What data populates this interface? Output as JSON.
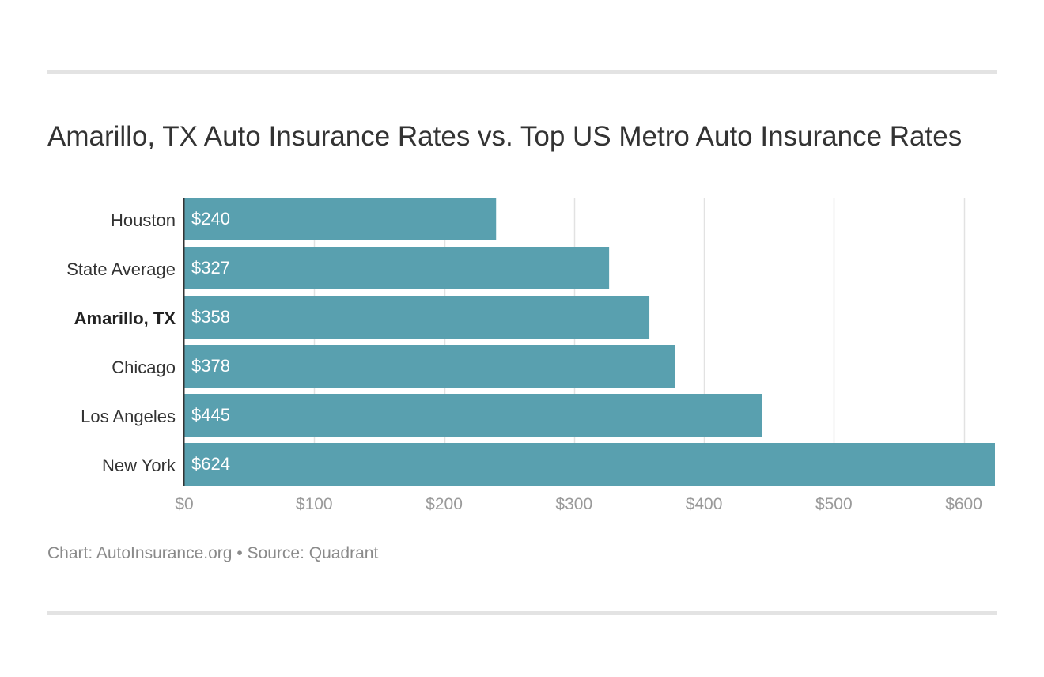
{
  "chart_data": {
    "type": "bar",
    "orientation": "horizontal",
    "title": "Amarillo, TX Auto Insurance Rates vs. Top US Metro Auto Insurance Rates",
    "categories": [
      "Houston",
      "State Average",
      "Amarillo, TX",
      "Chicago",
      "Los Angeles",
      "New York"
    ],
    "values": [
      240,
      327,
      358,
      378,
      445,
      624
    ],
    "value_labels": [
      "$240",
      "$327",
      "$358",
      "$378",
      "$445",
      "$624"
    ],
    "highlighted_category": "Amarillo, TX",
    "xlim": [
      0,
      624
    ],
    "x_ticks": [
      0,
      100,
      200,
      300,
      400,
      500,
      600
    ],
    "x_tick_labels": [
      "$0",
      "$100",
      "$200",
      "$300",
      "$400",
      "$500",
      "$600"
    ],
    "xlabel": "",
    "ylabel": "",
    "grid": "vertical",
    "bar_color": "#59a0af"
  },
  "footer": {
    "chart_credit": "Chart: AutoInsurance.org",
    "separator": "•",
    "source": "Source: Quadrant"
  }
}
